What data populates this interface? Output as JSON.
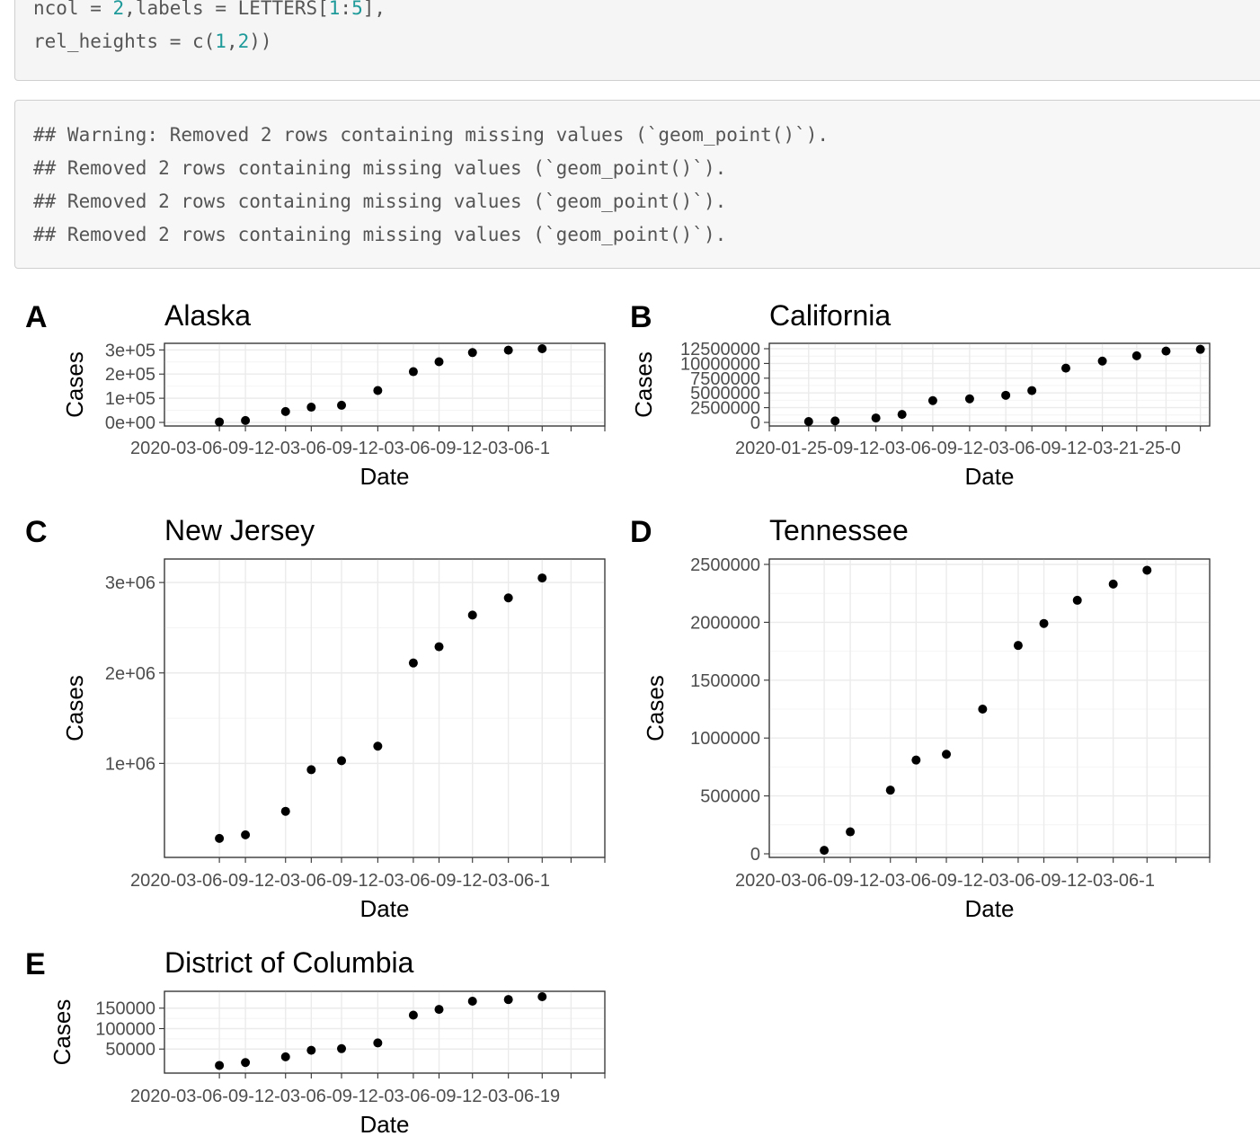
{
  "code": {
    "line1": {
      "a": "ncol = ",
      "b": "2",
      "c": ",labels = LETTERS[",
      "d": "1",
      "e": ":",
      "f": "5",
      "g": "],"
    },
    "line2": {
      "a": "rel_heights = c(",
      "b": "1",
      "c": ",",
      "d": "2",
      "e": "))"
    }
  },
  "output": {
    "lines": [
      "## Warning: Removed 2 rows containing missing values (`geom_point()`).",
      "## Removed 2 rows containing missing values (`geom_point()`).",
      "## Removed 2 rows containing missing values (`geom_point()`).",
      "## Removed 2 rows containing missing values (`geom_point()`)."
    ]
  },
  "chart_data": [
    {
      "type": "scatter",
      "tag": "A",
      "title": "Alaska",
      "xlabel": "Date",
      "ylabel": "Cases",
      "x": [
        "2020-06-19",
        "2020-09-01",
        "2020-12-24",
        "2021-03-07",
        "2021-06-01",
        "2021-09-12",
        "2021-12-22",
        "2022-03-05",
        "2022-06-08",
        "2022-09-18",
        "2022-12-23"
      ],
      "y": [
        2000,
        8000,
        45000,
        63000,
        71000,
        132000,
        210000,
        251000,
        289000,
        299000,
        305000
      ],
      "xlim": [
        "2020-01-15",
        "2023-06-19"
      ],
      "xticks": [
        "2020-06-19",
        "2020-09-01",
        "2020-12-24",
        "2021-03-07",
        "2021-06-01",
        "2021-09-12",
        "2021-12-22",
        "2022-03-05",
        "2022-06-08",
        "2022-09-18",
        "2022-12-23",
        "2023-03-15",
        "2023-06-19"
      ],
      "ylim": [
        0,
        305000
      ],
      "yticks": [
        0,
        100000,
        200000,
        300000
      ],
      "yticklabels": [
        "0e+00",
        "1e+05",
        "2e+05",
        "3e+05"
      ],
      "xtick_text": "2020-03-06-09-12-03-06-09-12-03-06-09-12-03-06-1"
    },
    {
      "type": "scatter",
      "tag": "B",
      "title": "California",
      "xlabel": "Date",
      "ylabel": "Cases",
      "x": [
        "2020-06-19",
        "2020-09-01",
        "2020-12-24",
        "2021-03-07",
        "2021-06-01",
        "2021-09-12",
        "2021-12-22",
        "2022-03-05",
        "2022-06-08",
        "2022-09-18",
        "2022-12-23",
        "2023-03-15",
        "2023-06-19"
      ],
      "y": [
        150000,
        250000,
        750000,
        1350000,
        3700000,
        4000000,
        4600000,
        5400000,
        9200000,
        10400000,
        11300000,
        12100000,
        12400000
      ],
      "xlim": [
        "2020-03-01",
        "2023-07-15"
      ],
      "xticks": [
        "2020-03-01",
        "2020-06-19",
        "2020-09-01",
        "2020-12-24",
        "2021-03-07",
        "2021-06-01",
        "2021-09-12",
        "2021-12-22",
        "2022-03-05",
        "2022-06-08",
        "2022-09-18",
        "2022-12-23",
        "2023-03-15",
        "2023-06-19"
      ],
      "ylim": [
        0,
        12500000
      ],
      "yticks": [
        0,
        2500000,
        5000000,
        7500000,
        10000000,
        12500000
      ],
      "yticklabels": [
        "0",
        "2500000",
        "5000000",
        "7500000",
        "10000000",
        "12500000"
      ],
      "xtick_text": "2020-01-25-09-12-03-06-09-12-03-06-09-12-03-21-25-0"
    },
    {
      "type": "scatter",
      "tag": "C",
      "title": "New Jersey",
      "xlabel": "Date",
      "ylabel": "Cases",
      "x": [
        "2020-06-19",
        "2020-09-01",
        "2020-12-24",
        "2021-03-07",
        "2021-06-01",
        "2021-09-12",
        "2021-12-22",
        "2022-03-05",
        "2022-06-08",
        "2022-09-18",
        "2022-12-23"
      ],
      "y": [
        170000,
        210000,
        470000,
        930000,
        1030000,
        1190000,
        2110000,
        2290000,
        2640000,
        2830000,
        3050000
      ],
      "xlim": [
        "2020-01-15",
        "2023-06-19"
      ],
      "xticks": [
        "2020-06-19",
        "2020-09-01",
        "2020-12-24",
        "2021-03-07",
        "2021-06-01",
        "2021-09-12",
        "2021-12-22",
        "2022-03-05",
        "2022-06-08",
        "2022-09-18",
        "2022-12-23",
        "2023-03-15",
        "2023-06-19"
      ],
      "ylim": [
        0,
        3200000
      ],
      "yticks": [
        1000000,
        2000000,
        3000000
      ],
      "yticklabels": [
        "1e+06",
        "2e+06",
        "3e+06"
      ],
      "xtick_text": "2020-03-06-09-12-03-06-09-12-03-06-09-12-03-06-1"
    },
    {
      "type": "scatter",
      "tag": "D",
      "title": "Tennessee",
      "xlabel": "Date",
      "ylabel": "Cases",
      "x": [
        "2020-06-19",
        "2020-09-01",
        "2020-12-24",
        "2021-03-07",
        "2021-06-01",
        "2021-09-12",
        "2021-12-22",
        "2022-03-05",
        "2022-06-08",
        "2022-09-18",
        "2022-12-23"
      ],
      "y": [
        30000,
        190000,
        550000,
        810000,
        860000,
        1250000,
        1800000,
        1990000,
        2190000,
        2330000,
        2450000
      ],
      "xlim": [
        "2020-01-15",
        "2023-06-19"
      ],
      "xticks": [
        "2020-06-19",
        "2020-09-01",
        "2020-12-24",
        "2021-03-07",
        "2021-06-01",
        "2021-09-12",
        "2021-12-22",
        "2022-03-05",
        "2022-06-08",
        "2022-09-18",
        "2022-12-23",
        "2023-03-15",
        "2023-06-19"
      ],
      "ylim": [
        0,
        2500000
      ],
      "yticks": [
        0,
        500000,
        1000000,
        1500000,
        2000000,
        2500000
      ],
      "yticklabels": [
        "0",
        "500000",
        "1000000",
        "1500000",
        "2000000",
        "2500000"
      ],
      "xtick_text": "2020-03-06-09-12-03-06-09-12-03-06-09-12-03-06-1"
    },
    {
      "type": "scatter",
      "tag": "E",
      "title": "District of Columbia",
      "xlabel": "Date",
      "ylabel": "Cases",
      "x": [
        "2020-06-19",
        "2020-09-01",
        "2020-12-24",
        "2021-03-07",
        "2021-06-01",
        "2021-09-12",
        "2021-12-22",
        "2022-03-05",
        "2022-06-08",
        "2022-09-18",
        "2022-12-23"
      ],
      "y": [
        10000,
        17000,
        31000,
        47000,
        51000,
        65000,
        133000,
        147000,
        167000,
        171000,
        178000
      ],
      "xlim": [
        "2020-01-15",
        "2023-06-19"
      ],
      "xticks": [
        "2020-06-19",
        "2020-09-01",
        "2020-12-24",
        "2021-03-07",
        "2021-06-01",
        "2021-09-12",
        "2021-12-22",
        "2022-03-05",
        "2022-06-08",
        "2022-09-18",
        "2022-12-23",
        "2023-03-15",
        "2023-06-19"
      ],
      "ylim": [
        0,
        178000
      ],
      "yticks": [
        50000,
        100000,
        150000
      ],
      "yticklabels": [
        "50000",
        "100000",
        "150000"
      ],
      "xtick_text": "2020-03-06-09-12-03-06-09-12-03-06-09-12-03-06-19"
    }
  ]
}
